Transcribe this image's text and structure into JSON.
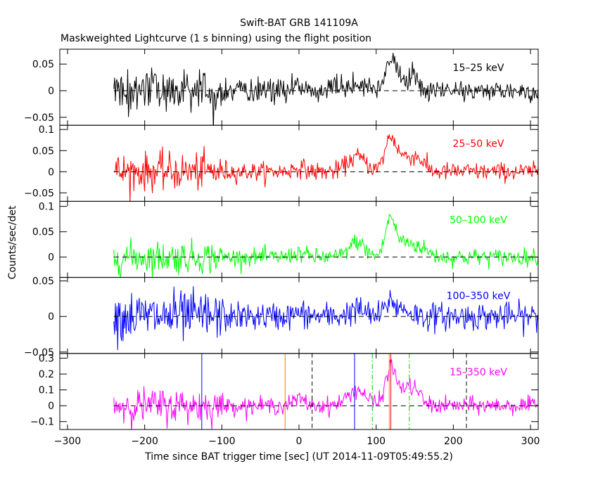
{
  "chart_data": {
    "type": "line",
    "title": "Swift-BAT GRB 141109A",
    "subtitle": "Maskweighted Lightcurve (1 s binning) using the flight position",
    "xlabel": "Time since BAT trigger time [sec] (UT 2014-11-09T05:49:55.2)",
    "ylabel": "Counts/sec/det",
    "xlim": [
      -310,
      310
    ],
    "xticks": [
      -300,
      -200,
      -100,
      0,
      100,
      200,
      300
    ],
    "xtick_labels": [
      "−300",
      "−200",
      "−100",
      "0",
      "100",
      "200",
      "300"
    ],
    "x_start": -240,
    "x_end": 310,
    "panels": [
      {
        "name": "15–25 keV",
        "color": "#000000",
        "ylim": [
          -0.065,
          0.078
        ],
        "yticks": [
          -0.05,
          0,
          0.05
        ],
        "ytick_labels": [
          "−0.05",
          "0",
          "0.05"
        ],
        "noise_early": 0.022,
        "noise_late": 0.006,
        "peaks": [
          [
            0,
            0.008,
            10
          ],
          [
            75,
            0.012,
            18
          ],
          [
            118,
            0.045,
            6
          ],
          [
            128,
            0.02,
            10
          ],
          [
            148,
            0.022,
            8
          ]
        ]
      },
      {
        "name": "25–50 keV",
        "color": "#ff0000",
        "ylim": [
          -0.07,
          0.11
        ],
        "yticks": [
          -0.05,
          0,
          0.05,
          0.1
        ],
        "ytick_labels": [
          "−0.05",
          "0",
          "0.05",
          "0.1"
        ],
        "noise_early": 0.022,
        "noise_late": 0.006,
        "peaks": [
          [
            0,
            0.01,
            8
          ],
          [
            75,
            0.035,
            12
          ],
          [
            118,
            0.07,
            7
          ],
          [
            135,
            0.035,
            12
          ],
          [
            155,
            0.025,
            8
          ]
        ]
      },
      {
        "name": "50–100 keV",
        "color": "#00ff00",
        "ylim": [
          -0.04,
          0.11
        ],
        "yticks": [
          0,
          0.05,
          0.1
        ],
        "ytick_labels": [
          "0",
          "0.05",
          "0.1"
        ],
        "noise_early": 0.016,
        "noise_late": 0.005,
        "peaks": [
          [
            0,
            0.008,
            8
          ],
          [
            75,
            0.03,
            10
          ],
          [
            118,
            0.065,
            6
          ],
          [
            135,
            0.03,
            14
          ],
          [
            160,
            0.012,
            10
          ]
        ]
      },
      {
        "name": "100–350 keV",
        "color": "#0000ff",
        "ylim": [
          -0.052,
          0.055
        ],
        "yticks": [
          -0.05,
          0,
          0.05
        ],
        "ytick_labels": [
          "−0.05",
          "0",
          "0.05"
        ],
        "noise_early": 0.018,
        "noise_late": 0.006,
        "peaks": [
          [
            0,
            0.004,
            8
          ],
          [
            75,
            0.01,
            10
          ],
          [
            118,
            0.02,
            6
          ],
          [
            135,
            0.01,
            10
          ]
        ]
      },
      {
        "name": "15–350 keV",
        "color": "#ff00ff",
        "ylim": [
          -0.15,
          0.33
        ],
        "yticks": [
          -0.1,
          0,
          0.1,
          0.2,
          0.3
        ],
        "ytick_labels": [
          "−0.1",
          "0",
          "0.1",
          "0.2",
          "0.3"
        ],
        "noise_early": 0.055,
        "noise_late": 0.014,
        "peaks": [
          [
            0,
            0.04,
            8
          ],
          [
            75,
            0.1,
            12
          ],
          [
            118,
            0.2,
            6
          ],
          [
            132,
            0.1,
            12
          ],
          [
            150,
            0.08,
            8
          ]
        ]
      }
    ],
    "markers": [
      {
        "x": -126,
        "color": "#0000ff",
        "style": "solid"
      },
      {
        "x": -18,
        "color": "#ff8000",
        "style": "solid"
      },
      {
        "x": 17,
        "color": "#000000",
        "style": "dashed"
      },
      {
        "x": 72,
        "color": "#0000ff",
        "style": "solid"
      },
      {
        "x": 95,
        "color": "#00cc00",
        "style": "dashdot"
      },
      {
        "x": 117,
        "color": "#ff8000",
        "style": "solid"
      },
      {
        "x": 119,
        "color": "#ff0000",
        "style": "solid"
      },
      {
        "x": 143,
        "color": "#00cc00",
        "style": "dashdot"
      },
      {
        "x": 217,
        "color": "#000000",
        "style": "dashed"
      }
    ]
  }
}
